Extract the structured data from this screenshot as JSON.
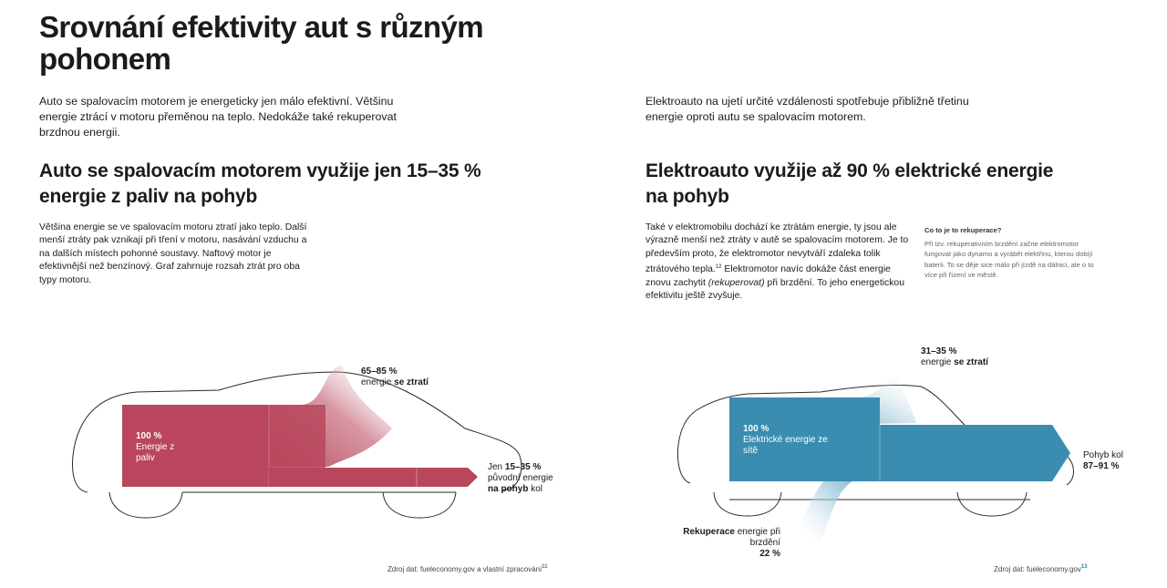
{
  "title": "Srovnání efektivity aut s různým pohonem",
  "left": {
    "intro": "Auto se spalovacím motorem je energeticky jen málo efektivní. Většinu energie ztrácí v motoru přeměnou na teplo. Nedokáže také rekuperovat brzdnou energii.",
    "heading": "Auto se spalovacím motorem využije jen 15–35 % energie z paliv na pohyb",
    "body": "Většina energie se ve spalovacím motoru ztratí jako teplo. Další menší ztráty pak vznikají při tření v motoru, nasávání vzduchu a na dalších místech pohonné soustavy. Naftový motor je efektivnější než benzínový. Graf zahrnuje rozsah ztrát pro oba typy motoru.",
    "diagram": {
      "input_value": "100 %",
      "input_label": "Energie z paliv",
      "loss_value": "65–85 %",
      "loss_prefix": "energie",
      "loss_bold": "se ztratí",
      "output_pre": "Jen",
      "output_value": "15–35 %",
      "output_mid": "původní energie",
      "output_bold": "na pohyb",
      "output_post": "kol",
      "flows": {
        "input_pct": 100,
        "loss_pct_range": [
          65,
          85
        ],
        "output_pct_range": [
          15,
          35
        ]
      },
      "color": "#b9465c"
    },
    "source": "Zdroj dat: fueleconomy.gov a vlastní zpracování",
    "source_ref": "11"
  },
  "right": {
    "intro": "Elektroauto na ujetí určité vzdálenosti spotřebuje přibližně třetinu energie oproti autu se spalovacím motorem.",
    "heading": "Elektroauto využije až 90 % elektrické energie na pohyb",
    "body_1": "Také v elektromobilu dochází ke ztrátám energie, ty jsou ale výrazně menší než ztráty v autě se spalovacím motorem. Je to především proto, že elektromotor nevytváří zdaleka tolik ztrátového tepla.",
    "body_ref": "12",
    "body_2": " Elektromotor navíc dokáže část energie znovu zachytit ",
    "body_em": "(rekuperovat)",
    "body_3": " při brzdění. To jeho energetickou efektivitu ještě zvyšuje.",
    "side_title": "Co to je to rekuperace?",
    "side_text": "Při tzv. rekuperativním brzdění začne elektromotor fungovat jako dynamo a vyrábět elektřinu, kterou dobíjí baterii. To se děje sice málo při jízdě na dálnici, ale o to více při řízení ve městě.",
    "diagram": {
      "input_value": "100 %",
      "input_label": "Elektrické energie ze sítě",
      "loss_value": "31–35 %",
      "loss_prefix": "energie",
      "loss_bold": "se ztratí",
      "output_label": "Pohyb kol",
      "output_value": "87–91 %",
      "regen_bold": "Rekuperace",
      "regen_label": "energie při brzdění",
      "regen_value": "22 %",
      "flows": {
        "input_pct": 100,
        "loss_pct_range": [
          31,
          35
        ],
        "regen_pct": 22,
        "output_pct_range": [
          87,
          91
        ]
      },
      "color": "#3a8db0"
    },
    "source": "Zdroj dat: fueleconomy.gov",
    "source_ref": "13"
  }
}
